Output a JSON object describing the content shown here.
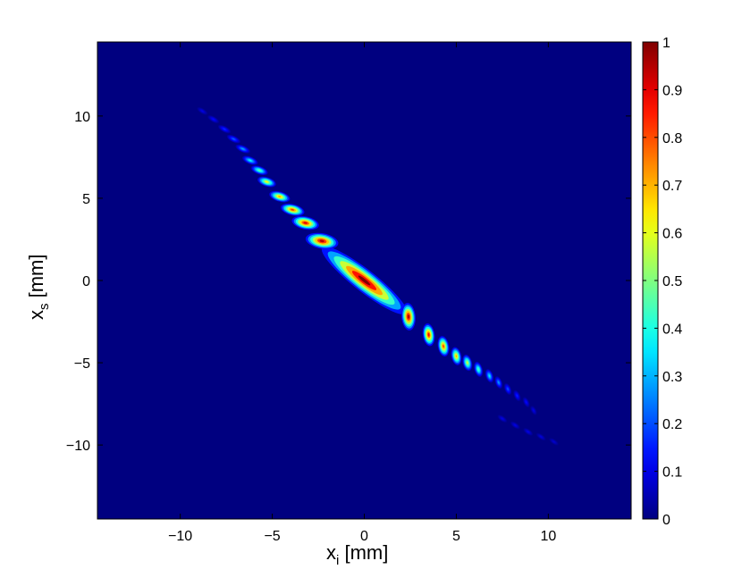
{
  "chart_data": {
    "type": "heatmap",
    "title": "",
    "xlabel": "x",
    "xlabel_sub": "i",
    "xlabel_unit": " [mm]",
    "ylabel": "x",
    "ylabel_sub": "s",
    "ylabel_unit": " [mm]",
    "xlim": [
      -14.5,
      14.5
    ],
    "ylim": [
      -14.5,
      14.5
    ],
    "x_ticks": [
      -10,
      -5,
      0,
      5,
      10
    ],
    "x_tick_labels": [
      "−10",
      "−5",
      "0",
      "5",
      "10"
    ],
    "y_ticks": [
      10,
      5,
      0,
      -5,
      -10
    ],
    "y_tick_labels": [
      "10",
      "5",
      "0",
      "−5",
      "−10"
    ],
    "grid": false,
    "colorbar": {
      "colormap": "jet",
      "range": [
        0,
        1
      ],
      "ticks": [
        0,
        0.1,
        0.2,
        0.3,
        0.4,
        0.5,
        0.6,
        0.7,
        0.8,
        0.9,
        1
      ],
      "tick_labels": [
        "0",
        "0.1",
        "0.2",
        "0.3",
        "0.4",
        "0.5",
        "0.6",
        "0.7",
        "0.8",
        "0.9",
        "1"
      ]
    },
    "background_value": 0,
    "features": [
      {
        "xi": 0.0,
        "xs": 0.0,
        "amplitude": 1.0,
        "length_mm": 2.9,
        "width_mm": 0.6,
        "angle_deg": -38
      },
      {
        "xi": -2.3,
        "xs": 2.4,
        "amplitude": 0.95,
        "length_mm": 0.9,
        "width_mm": 0.42,
        "angle_deg": -10
      },
      {
        "xi": 2.4,
        "xs": -2.2,
        "amplitude": 0.95,
        "length_mm": 0.75,
        "width_mm": 0.38,
        "angle_deg": -85
      },
      {
        "xi": -3.2,
        "xs": 3.5,
        "amplitude": 0.9,
        "length_mm": 0.75,
        "width_mm": 0.35,
        "angle_deg": -12
      },
      {
        "xi": 3.5,
        "xs": -3.3,
        "amplitude": 0.88,
        "length_mm": 0.62,
        "width_mm": 0.32,
        "angle_deg": -82
      },
      {
        "xi": -3.9,
        "xs": 4.3,
        "amplitude": 0.82,
        "length_mm": 0.66,
        "width_mm": 0.3,
        "angle_deg": -14
      },
      {
        "xi": 4.3,
        "xs": -4.0,
        "amplitude": 0.8,
        "length_mm": 0.56,
        "width_mm": 0.3,
        "angle_deg": -80
      },
      {
        "xi": -4.6,
        "xs": 5.1,
        "amplitude": 0.72,
        "length_mm": 0.58,
        "width_mm": 0.27,
        "angle_deg": -16
      },
      {
        "xi": 5.0,
        "xs": -4.6,
        "amplitude": 0.7,
        "length_mm": 0.5,
        "width_mm": 0.27,
        "angle_deg": -78
      },
      {
        "xi": -5.3,
        "xs": 6.0,
        "amplitude": 0.62,
        "length_mm": 0.52,
        "width_mm": 0.25,
        "angle_deg": -18
      },
      {
        "xi": 5.6,
        "xs": -5.0,
        "amplitude": 0.58,
        "length_mm": 0.45,
        "width_mm": 0.25,
        "angle_deg": -76
      },
      {
        "xi": -5.7,
        "xs": 6.7,
        "amplitude": 0.48,
        "length_mm": 0.48,
        "width_mm": 0.22,
        "angle_deg": -20
      },
      {
        "xi": 6.2,
        "xs": -5.4,
        "amplitude": 0.46,
        "length_mm": 0.42,
        "width_mm": 0.22,
        "angle_deg": -74
      },
      {
        "xi": -6.2,
        "xs": 7.3,
        "amplitude": 0.38,
        "length_mm": 0.45,
        "width_mm": 0.2,
        "angle_deg": -22
      },
      {
        "xi": 6.8,
        "xs": -5.8,
        "amplitude": 0.36,
        "length_mm": 0.38,
        "width_mm": 0.2,
        "angle_deg": -72
      },
      {
        "xi": -6.6,
        "xs": 8.0,
        "amplitude": 0.29,
        "length_mm": 0.42,
        "width_mm": 0.18,
        "angle_deg": -24
      },
      {
        "xi": 7.3,
        "xs": -6.2,
        "amplitude": 0.28,
        "length_mm": 0.35,
        "width_mm": 0.18,
        "angle_deg": -70
      },
      {
        "xi": -7.1,
        "xs": 8.6,
        "amplitude": 0.22,
        "length_mm": 0.4,
        "width_mm": 0.17,
        "angle_deg": -26
      },
      {
        "xi": 7.8,
        "xs": -6.6,
        "amplitude": 0.21,
        "length_mm": 0.33,
        "width_mm": 0.17,
        "angle_deg": -68
      },
      {
        "xi": -7.6,
        "xs": 9.2,
        "amplitude": 0.17,
        "length_mm": 0.38,
        "width_mm": 0.16,
        "angle_deg": -28
      },
      {
        "xi": 8.3,
        "xs": -7.0,
        "amplitude": 0.16,
        "length_mm": 0.32,
        "width_mm": 0.16,
        "angle_deg": -66
      },
      {
        "xi": -8.2,
        "xs": 9.8,
        "amplitude": 0.13,
        "length_mm": 0.35,
        "width_mm": 0.15,
        "angle_deg": -30
      },
      {
        "xi": 8.8,
        "xs": -7.4,
        "amplitude": 0.13,
        "length_mm": 0.3,
        "width_mm": 0.15,
        "angle_deg": -64
      },
      {
        "xi": -8.8,
        "xs": 10.3,
        "amplitude": 0.1,
        "length_mm": 0.33,
        "width_mm": 0.14,
        "angle_deg": -32
      },
      {
        "xi": 9.2,
        "xs": -7.9,
        "amplitude": 0.1,
        "length_mm": 0.28,
        "width_mm": 0.14,
        "angle_deg": -62
      },
      {
        "xi": 7.5,
        "xs": -8.4,
        "amplitude": 0.1,
        "length_mm": 0.3,
        "width_mm": 0.14,
        "angle_deg": -35
      },
      {
        "xi": 8.2,
        "xs": -8.8,
        "amplitude": 0.1,
        "length_mm": 0.3,
        "width_mm": 0.14,
        "angle_deg": -35
      },
      {
        "xi": 8.9,
        "xs": -9.2,
        "amplitude": 0.1,
        "length_mm": 0.3,
        "width_mm": 0.14,
        "angle_deg": -35
      },
      {
        "xi": 9.6,
        "xs": -9.5,
        "amplitude": 0.09,
        "length_mm": 0.3,
        "width_mm": 0.13,
        "angle_deg": -35
      },
      {
        "xi": 10.3,
        "xs": -9.8,
        "amplitude": 0.08,
        "length_mm": 0.3,
        "width_mm": 0.13,
        "angle_deg": -35
      }
    ]
  }
}
